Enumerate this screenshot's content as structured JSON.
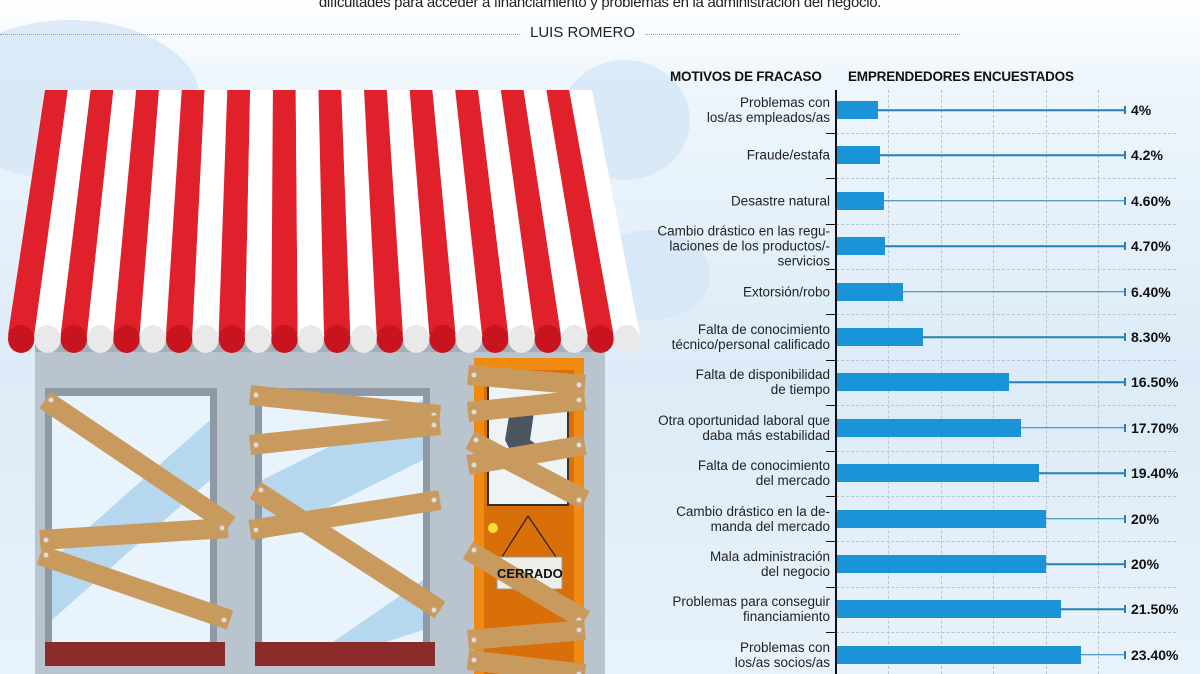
{
  "intro_text": "dificultades para acceder a financiamiento y problemas en la administración del negocio.",
  "author": "LUIS ROMERO",
  "illustration": {
    "sign_text": "CERRADO",
    "awning_colors": [
      "#e0202a",
      "#ffffff"
    ],
    "door_color": "#f08a10"
  },
  "chart_data": {
    "type": "bar",
    "orientation": "horizontal",
    "category_header": "MOTIVOS DE FRACASO",
    "value_header": "EMPRENDEDORES ENCUESTADOS",
    "xlim": [
      0,
      25
    ],
    "grid": true,
    "bar_color": "#1a93d8",
    "categories": [
      "Problemas con\nlos/as empleados/as",
      "Fraude/estafa",
      "Desastre natural",
      "Cambio drástico en las regu-\nlaciones  de los productos/-\nservicios",
      "Extorsión/robo",
      "Falta de conocimiento\ntécnico/personal calificado",
      "Falta de disponibilidad\nde tiempo",
      "Otra oportunidad laboral que\ndaba más estabilidad",
      "Falta de conocimiento\ndel mercado",
      "Cambio drástico en la de-\nmanda del mercado",
      "Mala administración\ndel negocio",
      "Problemas para conseguir\nfinanciamiento",
      "Problemas con\nlos/as socios/as"
    ],
    "values": [
      4,
      4.2,
      4.6,
      4.7,
      6.4,
      8.3,
      16.5,
      17.7,
      19.4,
      20,
      20,
      21.5,
      23.4
    ],
    "value_labels": [
      "4%",
      "4.2%",
      "4.60%",
      "4.70%",
      "6.40%",
      "8.30%",
      "16.50%",
      "17.70%",
      "19.40%",
      "20%",
      "20%",
      "21.50%",
      "23.40%"
    ]
  }
}
